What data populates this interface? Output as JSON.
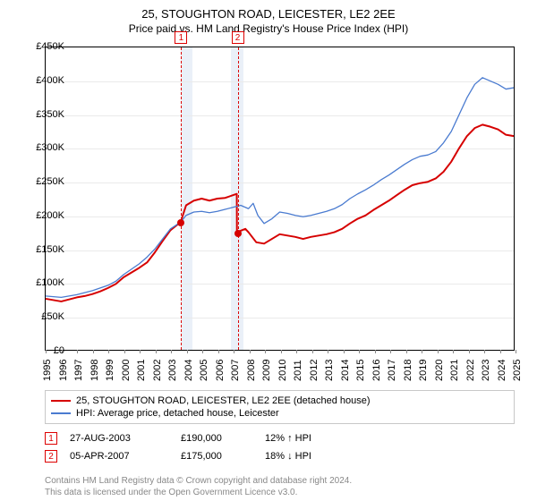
{
  "title": "25, STOUGHTON ROAD, LEICESTER, LE2 2EE",
  "subtitle": "Price paid vs. HM Land Registry's House Price Index (HPI)",
  "chart": {
    "type": "line",
    "background_color": "#ffffff",
    "grid_color": "#eaeaea",
    "border_color": "#000000",
    "x_range_years": [
      1995,
      2025
    ],
    "ylim": [
      0,
      450000
    ],
    "ytick_step": 50000,
    "yticks": [
      {
        "v": 0,
        "label": "£0"
      },
      {
        "v": 50000,
        "label": "£50K"
      },
      {
        "v": 100000,
        "label": "£100K"
      },
      {
        "v": 150000,
        "label": "£150K"
      },
      {
        "v": 200000,
        "label": "£200K"
      },
      {
        "v": 250000,
        "label": "£250K"
      },
      {
        "v": 300000,
        "label": "£300K"
      },
      {
        "v": 350000,
        "label": "£350K"
      },
      {
        "v": 400000,
        "label": "£400K"
      },
      {
        "v": 450000,
        "label": "£450K"
      }
    ],
    "xticks": [
      1995,
      1996,
      1997,
      1998,
      1999,
      2000,
      2001,
      2002,
      2003,
      2004,
      2005,
      2006,
      2007,
      2008,
      2009,
      2010,
      2011,
      2012,
      2013,
      2014,
      2015,
      2016,
      2017,
      2018,
      2019,
      2020,
      2021,
      2022,
      2023,
      2024,
      2025
    ],
    "highlight_bands": [
      {
        "start_year": 2003.65,
        "end_year": 2004.35,
        "color": "#eaf0f8"
      },
      {
        "start_year": 2006.8,
        "end_year": 2007.6,
        "color": "#eaf0f8"
      }
    ],
    "dashed_markers": [
      {
        "year": 2003.65,
        "label": "1"
      },
      {
        "year": 2007.26,
        "label": "2"
      }
    ],
    "dots": [
      {
        "year": 2003.65,
        "value": 190000,
        "color": "#d60000"
      },
      {
        "year": 2007.26,
        "value": 175000,
        "color": "#d60000"
      }
    ],
    "series": [
      {
        "id": "property",
        "label": "25, STOUGHTON ROAD, LEICESTER, LE2 2EE (detached house)",
        "color": "#d60000",
        "line_width": 2,
        "points": [
          [
            1995,
            76000
          ],
          [
            1995.5,
            74000
          ],
          [
            1996,
            72000
          ],
          [
            1996.5,
            75000
          ],
          [
            1997,
            78000
          ],
          [
            1997.5,
            80000
          ],
          [
            1998,
            83000
          ],
          [
            1998.5,
            87000
          ],
          [
            1999,
            92000
          ],
          [
            1999.5,
            98000
          ],
          [
            2000,
            108000
          ],
          [
            2000.5,
            115000
          ],
          [
            2001,
            122000
          ],
          [
            2001.5,
            130000
          ],
          [
            2002,
            145000
          ],
          [
            2002.5,
            162000
          ],
          [
            2003,
            178000
          ],
          [
            2003.65,
            190000
          ],
          [
            2004,
            215000
          ],
          [
            2004.5,
            222000
          ],
          [
            2005,
            225000
          ],
          [
            2005.5,
            222000
          ],
          [
            2006,
            225000
          ],
          [
            2006.5,
            226000
          ],
          [
            2007,
            230000
          ],
          [
            2007.25,
            232000
          ],
          [
            2007.26,
            175000
          ],
          [
            2007.8,
            180000
          ],
          [
            2008,
            175000
          ],
          [
            2008.5,
            160000
          ],
          [
            2009,
            158000
          ],
          [
            2009.5,
            165000
          ],
          [
            2010,
            172000
          ],
          [
            2010.5,
            170000
          ],
          [
            2011,
            168000
          ],
          [
            2011.5,
            165000
          ],
          [
            2012,
            168000
          ],
          [
            2012.5,
            170000
          ],
          [
            2013,
            172000
          ],
          [
            2013.5,
            175000
          ],
          [
            2014,
            180000
          ],
          [
            2014.5,
            188000
          ],
          [
            2015,
            195000
          ],
          [
            2015.5,
            200000
          ],
          [
            2016,
            208000
          ],
          [
            2016.5,
            215000
          ],
          [
            2017,
            222000
          ],
          [
            2017.5,
            230000
          ],
          [
            2018,
            238000
          ],
          [
            2018.5,
            245000
          ],
          [
            2019,
            248000
          ],
          [
            2019.5,
            250000
          ],
          [
            2020,
            255000
          ],
          [
            2020.5,
            265000
          ],
          [
            2021,
            280000
          ],
          [
            2021.5,
            300000
          ],
          [
            2022,
            318000
          ],
          [
            2022.5,
            330000
          ],
          [
            2023,
            335000
          ],
          [
            2023.5,
            332000
          ],
          [
            2024,
            328000
          ],
          [
            2024.5,
            320000
          ],
          [
            2025,
            318000
          ]
        ]
      },
      {
        "id": "hpi",
        "label": "HPI: Average price, detached house, Leicester",
        "color": "#4a7bd0",
        "line_width": 1.3,
        "points": [
          [
            1995,
            80000
          ],
          [
            1995.5,
            79000
          ],
          [
            1996,
            78000
          ],
          [
            1996.5,
            80000
          ],
          [
            1997,
            82000
          ],
          [
            1997.5,
            85000
          ],
          [
            1998,
            88000
          ],
          [
            1998.5,
            92000
          ],
          [
            1999,
            96000
          ],
          [
            1999.5,
            102000
          ],
          [
            2000,
            112000
          ],
          [
            2000.5,
            120000
          ],
          [
            2001,
            128000
          ],
          [
            2001.5,
            138000
          ],
          [
            2002,
            150000
          ],
          [
            2002.5,
            165000
          ],
          [
            2003,
            180000
          ],
          [
            2003.65,
            190000
          ],
          [
            2004,
            200000
          ],
          [
            2004.5,
            205000
          ],
          [
            2005,
            206000
          ],
          [
            2005.5,
            204000
          ],
          [
            2006,
            206000
          ],
          [
            2006.5,
            209000
          ],
          [
            2007,
            212000
          ],
          [
            2007.5,
            215000
          ],
          [
            2008,
            210000
          ],
          [
            2008.3,
            218000
          ],
          [
            2008.6,
            200000
          ],
          [
            2009,
            188000
          ],
          [
            2009.5,
            195000
          ],
          [
            2010,
            205000
          ],
          [
            2010.5,
            203000
          ],
          [
            2011,
            200000
          ],
          [
            2011.5,
            198000
          ],
          [
            2012,
            200000
          ],
          [
            2012.5,
            203000
          ],
          [
            2013,
            206000
          ],
          [
            2013.5,
            210000
          ],
          [
            2014,
            216000
          ],
          [
            2014.5,
            225000
          ],
          [
            2015,
            232000
          ],
          [
            2015.5,
            238000
          ],
          [
            2016,
            245000
          ],
          [
            2016.5,
            253000
          ],
          [
            2017,
            260000
          ],
          [
            2017.5,
            268000
          ],
          [
            2018,
            276000
          ],
          [
            2018.5,
            283000
          ],
          [
            2019,
            288000
          ],
          [
            2019.5,
            290000
          ],
          [
            2020,
            295000
          ],
          [
            2020.5,
            308000
          ],
          [
            2021,
            325000
          ],
          [
            2021.5,
            350000
          ],
          [
            2022,
            375000
          ],
          [
            2022.5,
            395000
          ],
          [
            2023,
            405000
          ],
          [
            2023.5,
            400000
          ],
          [
            2024,
            395000
          ],
          [
            2024.5,
            388000
          ],
          [
            2025,
            390000
          ]
        ]
      }
    ]
  },
  "legend": {
    "items": [
      {
        "color": "#d60000",
        "label": "25, STOUGHTON ROAD, LEICESTER, LE2 2EE (detached house)"
      },
      {
        "color": "#4a7bd0",
        "label": "HPI: Average price, detached house, Leicester"
      }
    ]
  },
  "sales": [
    {
      "marker": "1",
      "date": "27-AUG-2003",
      "price": "£190,000",
      "hpi": "12% ↑ HPI"
    },
    {
      "marker": "2",
      "date": "05-APR-2007",
      "price": "£175,000",
      "hpi": "18% ↓ HPI"
    }
  ],
  "footer": {
    "line1": "Contains HM Land Registry data © Crown copyright and database right 2024.",
    "line2": "This data is licensed under the Open Government Licence v3.0."
  }
}
